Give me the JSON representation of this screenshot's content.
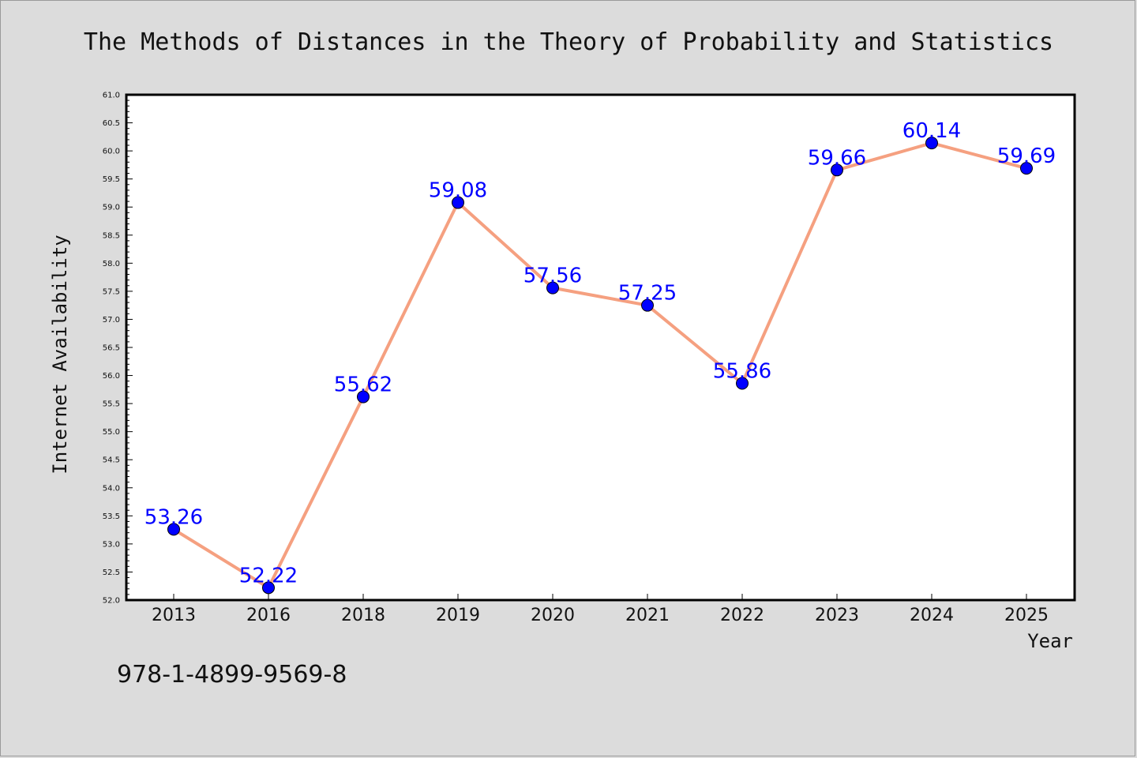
{
  "isbn": "978-1-4899-9569-8",
  "colors": {
    "background": "#dcdcdc",
    "plot_background": "#ffffff",
    "line": "#f5a080",
    "marker": "#0000ff",
    "data_label": "#0000ff"
  },
  "chart_data": {
    "type": "line",
    "title": "The Methods of Distances in the Theory of Probability and Statistics",
    "xlabel": "Year",
    "ylabel": "Internet Availability",
    "categories": [
      "2013",
      "2016",
      "2018",
      "2019",
      "2020",
      "2021",
      "2022",
      "2023",
      "2024",
      "2025"
    ],
    "values": [
      53.26,
      52.22,
      55.62,
      59.08,
      57.56,
      57.25,
      55.86,
      59.66,
      60.14,
      59.69
    ],
    "data_labels": [
      "53.26",
      "52.22",
      "55.62",
      "59.08",
      "57.56",
      "57.25",
      "55.86",
      "59.66",
      "60.14",
      "59.69"
    ],
    "ylim": [
      52.0,
      61.0
    ],
    "yticks": [
      "52.0",
      "52.5",
      "53.0",
      "53.5",
      "54.0",
      "54.5",
      "55.0",
      "55.5",
      "56.0",
      "56.5",
      "57.0",
      "57.5",
      "58.0",
      "58.5",
      "59.0",
      "59.5",
      "60.0",
      "60.5",
      "61.0"
    ],
    "grid": false,
    "legend": false,
    "marker": "circle"
  }
}
